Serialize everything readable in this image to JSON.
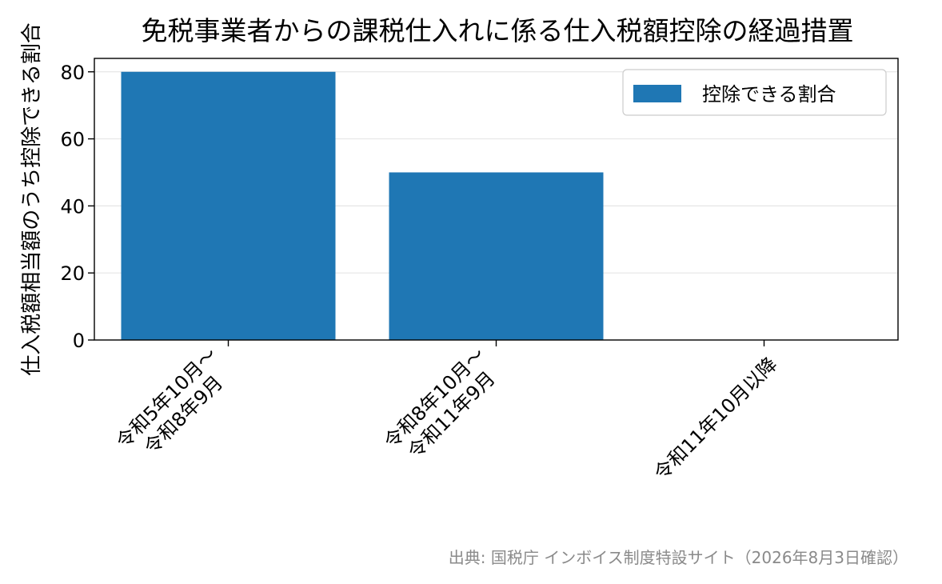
{
  "chart_data": {
    "type": "bar",
    "title": "免税事業者からの課税仕入れに係る仕入税額控除の経過措置",
    "xlabel": "",
    "ylabel": "仕入税額相当額のうち控除できる割合",
    "categories": [
      [
        "令和5年10月～",
        "令和8年9月"
      ],
      [
        "令和8年10月～",
        "令和11年9月"
      ],
      [
        "令和11年10月以降"
      ]
    ],
    "series": [
      {
        "name": "控除できる割合",
        "values": [
          80,
          50,
          0
        ],
        "color": "#1f77b4"
      }
    ],
    "ylim": [
      0,
      84
    ],
    "yticks": [
      0,
      20,
      40,
      60,
      80
    ],
    "grid": "y",
    "legend": "top-right"
  },
  "source_note": "出典: 国税庁 インボイス制度特設サイト（2026年8月3日確認）"
}
